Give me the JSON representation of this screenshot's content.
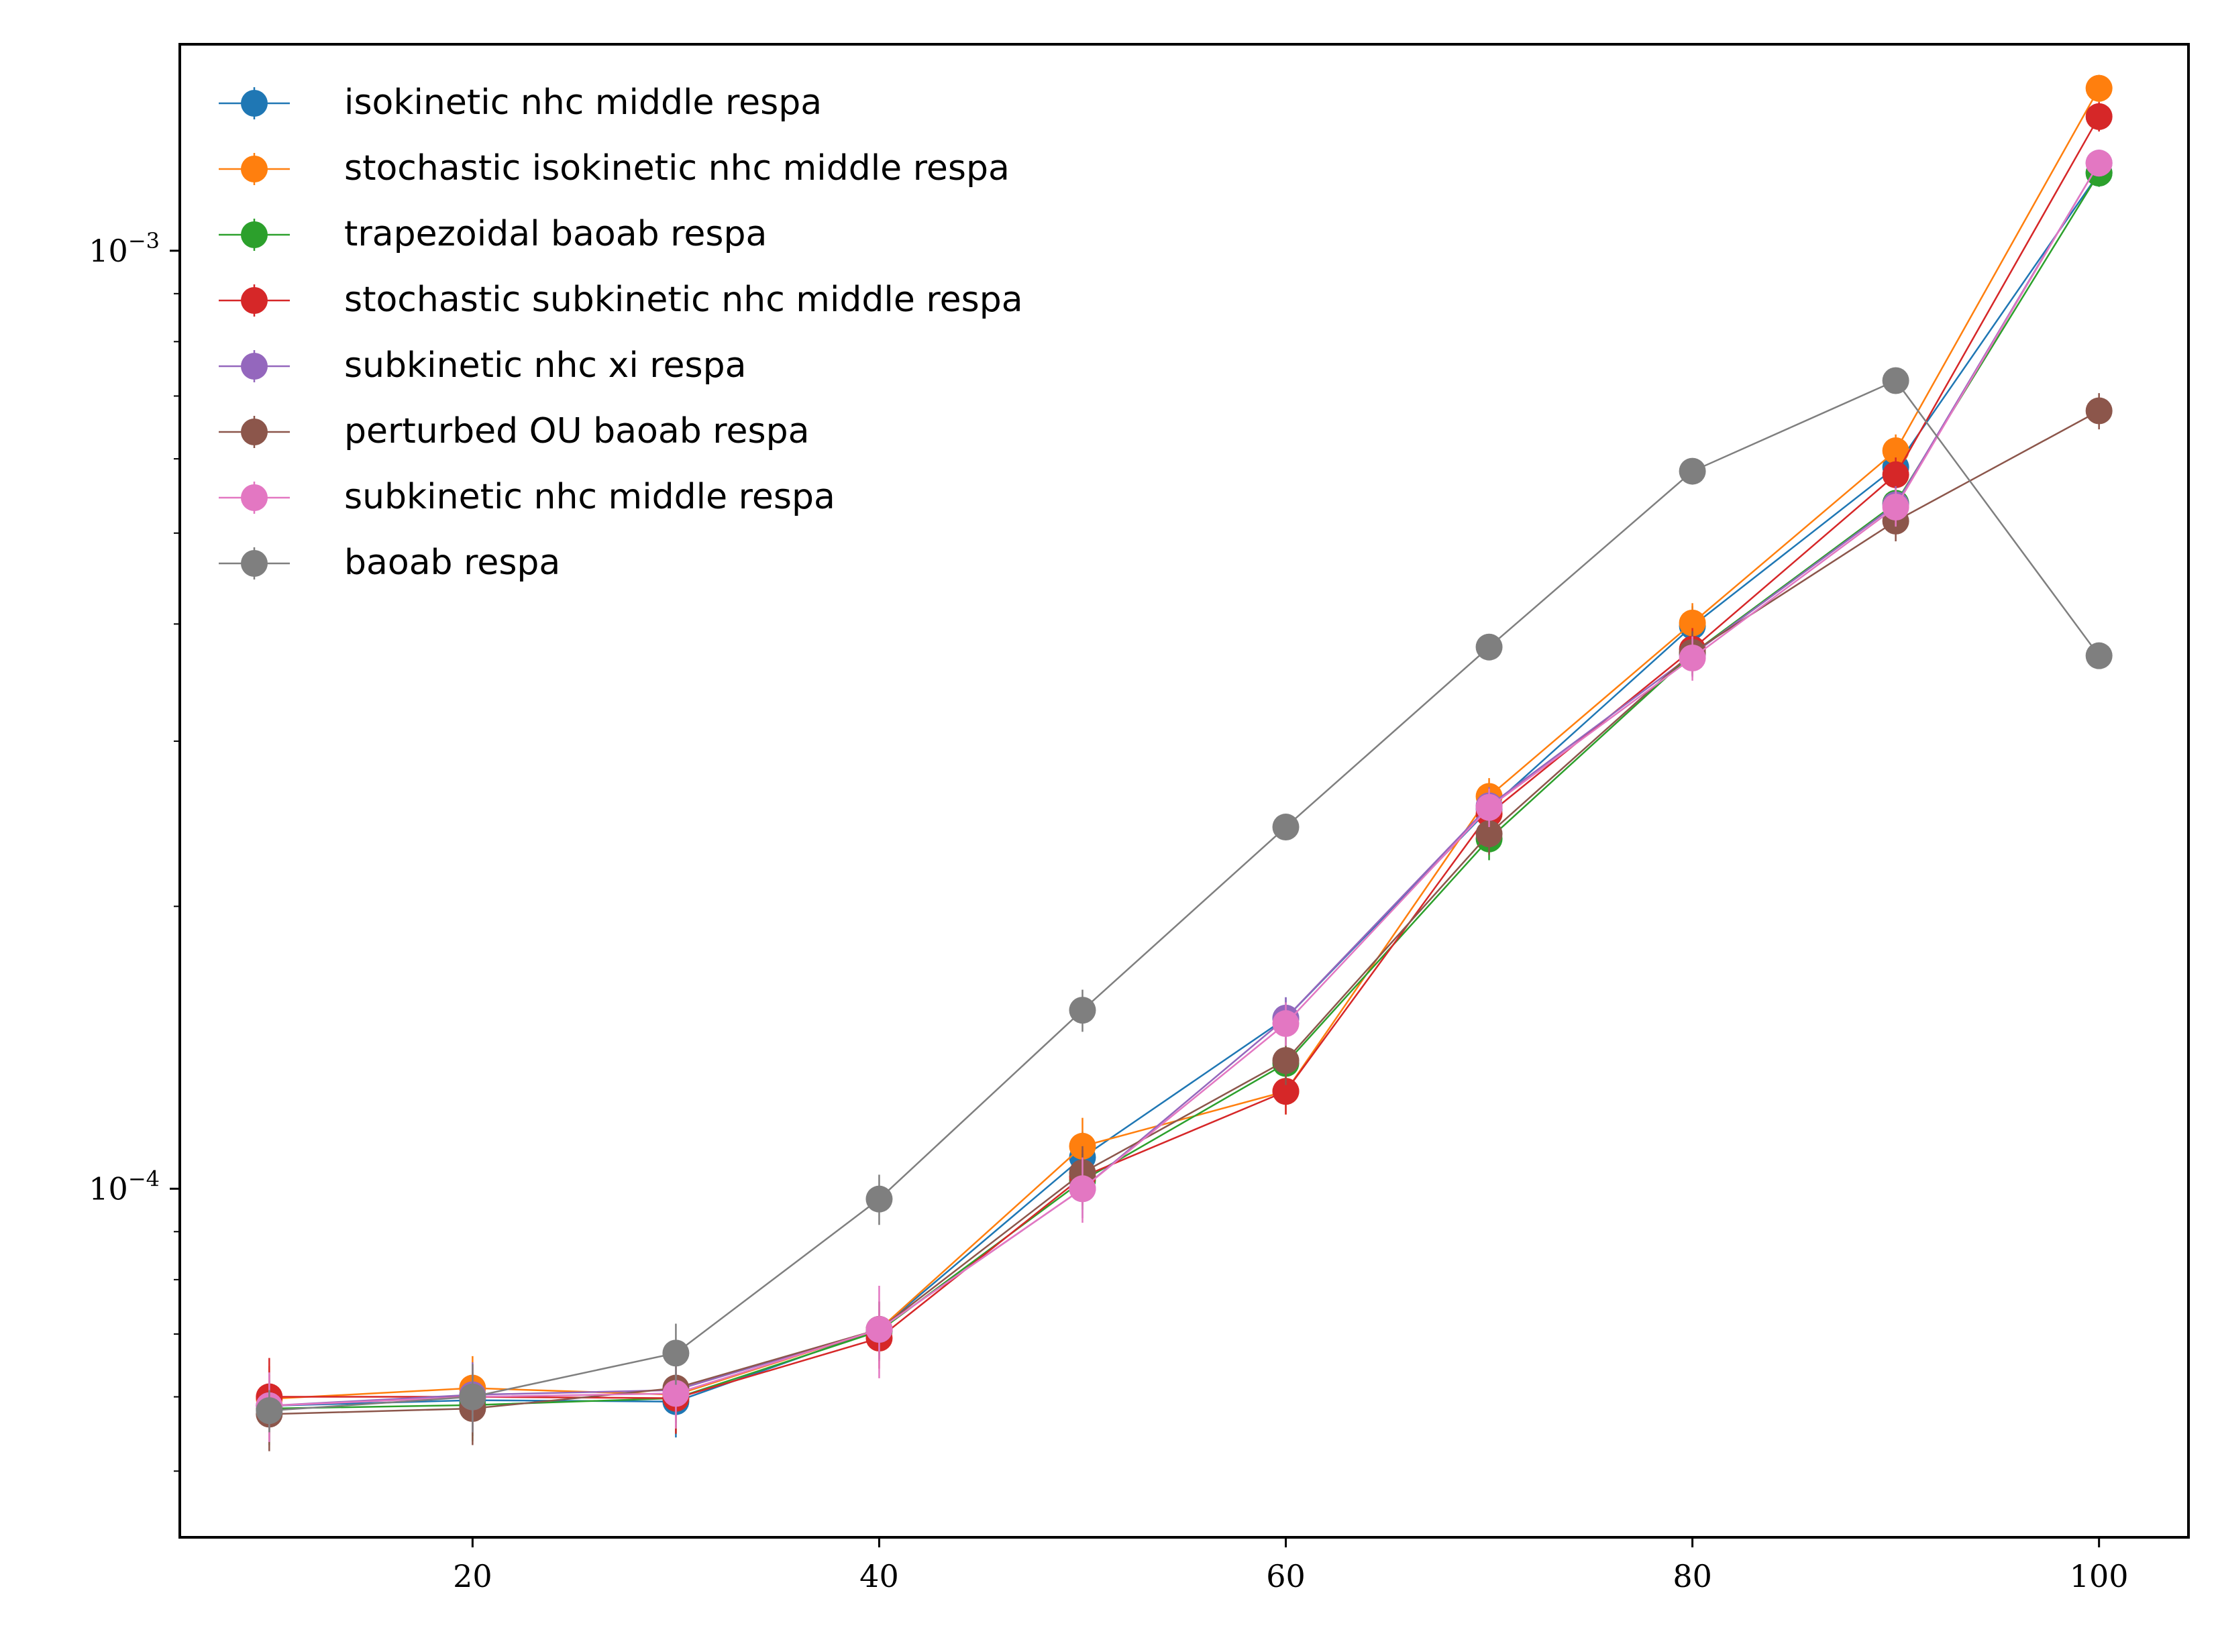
{
  "chart_data": {
    "type": "line",
    "title": "",
    "xlabel": "",
    "ylabel": "",
    "x_scale": "linear",
    "y_scale": "log",
    "xlim": [
      5.6,
      104.4
    ],
    "ylim": [
      4.25e-05,
      0.00166
    ],
    "x_ticks": [
      20,
      40,
      60,
      80,
      100
    ],
    "y_ticks": [
      0.0001,
      0.001
    ],
    "y_tick_labels": [
      {
        "base": "10",
        "exp": "−4"
      },
      {
        "base": "10",
        "exp": "−3"
      }
    ],
    "grid": false,
    "legend_position": "upper-left",
    "x": [
      10,
      20,
      30,
      40,
      50,
      60,
      70,
      80,
      90,
      100
    ],
    "series": [
      {
        "name": "isokinetic nhc middle respa",
        "color": "#1f77b4",
        "values": [
          5.87e-05,
          5.95e-05,
          5.93e-05,
          7.08e-05,
          0.000108,
          0.000152,
          0.000254,
          0.000398,
          0.000588,
          0.00121
        ],
        "errors": [
          5e-06,
          5e-06,
          5e-06,
          5e-06,
          7e-06,
          8e-06,
          1.2e-05,
          2e-05,
          2.5e-05,
          4e-05
        ]
      },
      {
        "name": "stochastic isokinetic nhc middle respa",
        "color": "#ff7f0e",
        "values": [
          5.97e-05,
          6.13e-05,
          6.03e-05,
          7.08e-05,
          0.000111,
          0.000127,
          0.000262,
          0.000401,
          0.000612,
          0.00149
        ],
        "errors": [
          5e-06,
          5e-06,
          5e-06,
          5e-06,
          8e-06,
          7e-06,
          1.2e-05,
          2e-05,
          2.5e-05,
          5e-05
        ]
      },
      {
        "name": "trapezoidal baoab respa",
        "color": "#2ca02c",
        "values": [
          5.83e-05,
          5.88e-05,
          5.98e-05,
          7.05e-05,
          0.000102,
          0.000136,
          0.000236,
          0.000372,
          0.000538,
          0.00121
        ],
        "errors": [
          5e-06,
          5e-06,
          5e-06,
          5e-06,
          7e-06,
          8e-06,
          1.2e-05,
          2e-05,
          2.5e-05,
          4e-05
        ]
      },
      {
        "name": "stochastic subkinetic nhc middle respa",
        "color": "#d62728",
        "values": [
          6e-05,
          6e-05,
          5.98e-05,
          6.93e-05,
          0.000103,
          0.000127,
          0.000251,
          0.000376,
          0.000577,
          0.00139
        ],
        "errors": [
          6e-06,
          5e-06,
          5e-06,
          5e-06,
          7e-06,
          7e-06,
          1.2e-05,
          2e-05,
          2.5e-05,
          5e-05
        ]
      },
      {
        "name": "subkinetic nhc xi respa",
        "color": "#9467bd",
        "values": [
          5.87e-05,
          6.03e-05,
          6.1e-05,
          7.08e-05,
          0.0001,
          0.000152,
          0.000256,
          0.000371,
          0.000536,
          0.00124
        ],
        "errors": [
          5e-06,
          5e-06,
          5e-06,
          5e-06,
          7e-06,
          8e-06,
          1.2e-05,
          2e-05,
          2.5e-05,
          4e-05
        ]
      },
      {
        "name": "perturbed OU baoab respa",
        "color": "#8c564b",
        "values": [
          5.75e-05,
          5.83e-05,
          6.13e-05,
          7.08e-05,
          0.000104,
          0.000137,
          0.000239,
          0.000373,
          0.000515,
          0.000675
        ],
        "errors": [
          5e-06,
          5e-06,
          5e-06,
          5e-06,
          7e-06,
          8e-06,
          1.2e-05,
          2e-05,
          2.5e-05,
          3e-05
        ]
      },
      {
        "name": "subkinetic nhc middle respa",
        "color": "#e377c2",
        "values": [
          5.87e-05,
          6e-05,
          6.05e-05,
          7.08e-05,
          0.0001,
          0.00015,
          0.000255,
          0.000368,
          0.000533,
          0.00124
        ],
        "errors": [
          5e-06,
          5e-06,
          5e-06,
          8e-06,
          8e-06,
          8e-06,
          1.2e-05,
          2e-05,
          2.5e-05,
          4e-05
        ]
      },
      {
        "name": "baoab respa",
        "color": "#7f7f7f",
        "values": [
          5.8e-05,
          6e-05,
          6.68e-05,
          9.75e-05,
          0.000155,
          0.000243,
          0.000378,
          0.000582,
          0.000727,
          0.00037
        ],
        "errors": [
          3e-06,
          5e-06,
          5e-06,
          6e-06,
          8e-06,
          5e-06,
          8e-06,
          1e-05,
          1e-05,
          1e-05
        ]
      }
    ]
  }
}
